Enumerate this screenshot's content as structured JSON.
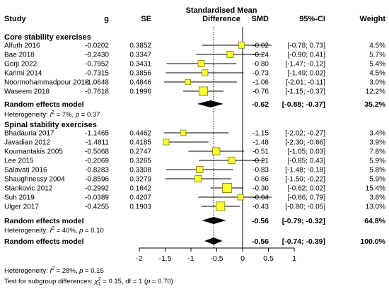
{
  "chart_data": {
    "type": "forest",
    "title": "Standardised Mean Difference",
    "columns": {
      "study": "Study",
      "g": "g",
      "se": "SE",
      "plot": "Standardised Mean Difference",
      "smd": "SMD",
      "ci": "95%-CI",
      "weight": "Weight"
    },
    "x_axis": {
      "ticks": [
        -2,
        -1.5,
        -1,
        -0.5,
        0,
        0.5,
        1
      ],
      "tick_labels": [
        "-2",
        "-1.5",
        "-1",
        "-0.5",
        "0",
        "0.5",
        "1"
      ],
      "range": [
        -2,
        1
      ],
      "reference_line": 0,
      "pooled_line": -0.56
    },
    "subgroups": [
      {
        "name": "Core stability exercises",
        "studies": [
          {
            "study": "Alfuth 2016",
            "g": "-0.0202",
            "se": "0.3852",
            "smd": -0.02,
            "lower": -0.78,
            "upper": 0.73,
            "smd_text": "-0.02",
            "ci_text": "[-0.78; 0.73]",
            "weight": 4.5,
            "weight_text": "4.5%"
          },
          {
            "study": "Bae 2018",
            "g": "-0.2430",
            "se": "0.3347",
            "smd": -0.24,
            "lower": -0.9,
            "upper": 0.41,
            "smd_text": "-0.24",
            "ci_text": "[-0.90; 0.41]",
            "weight": 5.7,
            "weight_text": "5.7%"
          },
          {
            "study": "Gorji 2022",
            "g": "-0.7952",
            "se": "0.3431",
            "smd": -0.8,
            "lower": -1.47,
            "upper": -0.12,
            "smd_text": "-0.80",
            "ci_text": "[-1.47; -0.12]",
            "weight": 5.4,
            "weight_text": "5.4%"
          },
          {
            "study": "Karimi 2014",
            "g": "-0.7315",
            "se": "0.3856",
            "smd": -0.73,
            "lower": -1.49,
            "upper": 0.02,
            "smd_text": "-0.73",
            "ci_text": "[-1.49; 0.02]",
            "weight": 4.5,
            "weight_text": "4.5%"
          },
          {
            "study": "Noormohammadpour 2018",
            "g": "-1.0648",
            "se": "0.4846",
            "smd": -1.06,
            "lower": -2.01,
            "upper": -0.11,
            "smd_text": "-1.06",
            "ci_text": "[-2.01; -0.11]",
            "weight": 3.0,
            "weight_text": "3.0%"
          },
          {
            "study": "Waseem 2018",
            "g": "-0.7618",
            "se": "0.1996",
            "smd": -0.76,
            "lower": -1.15,
            "upper": -0.37,
            "smd_text": "-0.76",
            "ci_text": "[-1.15; -0.37]",
            "weight": 12.2,
            "weight_text": "12.2%"
          }
        ],
        "pooled": {
          "label": "Random effects model",
          "smd": -0.62,
          "lower": -0.88,
          "upper": -0.37,
          "smd_text": "-0.62",
          "ci_text": "[-0.88; -0.37]",
          "weight_text": "35.2%"
        },
        "heterogeneity": {
          "prefix": "Heterogeneity: ",
          "i2_symbol": "I",
          "i2_sup": "2",
          "i2_value": " = 7%, ",
          "p_symbol": "p",
          "p_value": " = 0.37"
        }
      },
      {
        "name": "Spinal stability exercises",
        "studies": [
          {
            "study": "Bhadauria 2017",
            "g": "-1.1465",
            "se": "0.4462",
            "smd": -1.15,
            "lower": -2.02,
            "upper": -0.27,
            "smd_text": "-1.15",
            "ci_text": "[-2.02; -0.27]",
            "weight": 3.4,
            "weight_text": "3.4%"
          },
          {
            "study": "Javadian 2012",
            "g": "-1.4811",
            "se": "0.4185",
            "smd": -1.48,
            "lower": -2.3,
            "upper": -0.66,
            "smd_text": "-1.48",
            "ci_text": "[-2.30; -0.66]",
            "weight": 3.9,
            "weight_text": "3.9%"
          },
          {
            "study": "Koumantakis 2005",
            "g": "-0.5068",
            "se": "0.2747",
            "smd": -0.51,
            "lower": -1.05,
            "upper": 0.03,
            "smd_text": "-0.51",
            "ci_text": "[-1.05; 0.03]",
            "weight": 7.8,
            "weight_text": "7.8%"
          },
          {
            "study": "Lee 2015",
            "g": "-0.2069",
            "se": "0.3265",
            "smd": -0.21,
            "lower": -0.85,
            "upper": 0.43,
            "smd_text": "-0.21",
            "ci_text": "[-0.85; 0.43]",
            "weight": 5.9,
            "weight_text": "5.9%"
          },
          {
            "study": "Salavati 2016",
            "g": "-0.8283",
            "se": "0.3308",
            "smd": -0.83,
            "lower": -1.48,
            "upper": -0.18,
            "smd_text": "-0.83",
            "ci_text": "[-1.48; -0.18]",
            "weight": 5.8,
            "weight_text": "5.8%"
          },
          {
            "study": "Shaughnessy 2004",
            "g": "-0.8596",
            "se": "0.3279",
            "smd": -0.86,
            "lower": -1.5,
            "upper": -0.22,
            "smd_text": "-0.86",
            "ci_text": "[-1.50; -0.22]",
            "weight": 5.9,
            "weight_text": "5.9%"
          },
          {
            "study": "Stankovic 2012",
            "g": "-0.2992",
            "se": "0.1642",
            "smd": -0.3,
            "lower": -0.62,
            "upper": 0.02,
            "smd_text": "-0.30",
            "ci_text": "[-0.62; 0.02]",
            "weight": 15.4,
            "weight_text": "15.4%"
          },
          {
            "study": "Suh 2019",
            "g": "-0.0389",
            "se": "0.4207",
            "smd": -0.04,
            "lower": -0.86,
            "upper": 0.79,
            "smd_text": "-0.04",
            "ci_text": "[-0.86; 0.79]",
            "weight": 3.8,
            "weight_text": "3.8%"
          },
          {
            "study": "Ulger 2017",
            "g": "-0.4255",
            "se": "0.1903",
            "smd": -0.43,
            "lower": -0.8,
            "upper": -0.05,
            "smd_text": "-0.43",
            "ci_text": "[-0.80; -0.05]",
            "weight": 13.0,
            "weight_text": "13.0%"
          }
        ],
        "pooled": {
          "label": "Random effects model",
          "smd": -0.56,
          "lower": -0.79,
          "upper": -0.32,
          "smd_text": "-0.56",
          "ci_text": "[-0.79; -0.32]",
          "weight_text": "64.8%"
        },
        "heterogeneity": {
          "prefix": "Heterogeneity: ",
          "i2_symbol": "I",
          "i2_sup": "2",
          "i2_value": " = 40%, ",
          "p_symbol": "p",
          "p_value": " = 0.10"
        }
      }
    ],
    "overall": {
      "label": "Random effects model",
      "smd": -0.56,
      "lower": -0.74,
      "upper": -0.39,
      "smd_text": "-0.56",
      "ci_text": "[-0.74; -0.39]",
      "weight_text": "100.0%"
    },
    "overall_heterogeneity": {
      "prefix": "Heterogeneity: ",
      "i2_symbol": "I",
      "i2_sup": "2",
      "i2_value": " = 28%, ",
      "p_symbol": "p",
      "p_value": " = 0.15"
    },
    "subgroup_test": {
      "prefix": "Test for subgroup differences: ",
      "chi_symbol": "χ",
      "chi_sup": "2",
      "chi_sub": "1",
      "chi_value": " = 0.15, df = 1 (",
      "p_symbol": "p",
      "p_value": " = 0.70)"
    },
    "colors": {
      "square_fill": "#ffff33",
      "square_stroke": "#7a7a00",
      "line": "#000000",
      "diamond": "#000000",
      "text": "#000000"
    }
  }
}
